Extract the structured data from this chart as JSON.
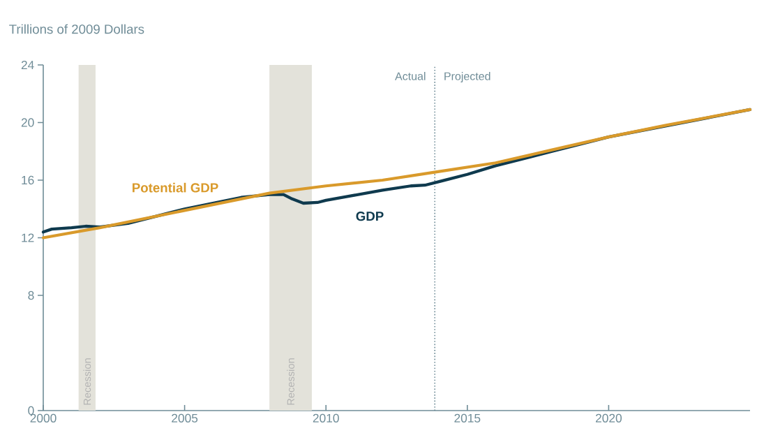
{
  "chart_data": {
    "type": "line",
    "ylabel": "Trillions of 2009 Dollars",
    "xlim": [
      2000,
      2025
    ],
    "ylim": [
      0,
      24
    ],
    "xticks": [
      2000,
      2005,
      2010,
      2015,
      2020
    ],
    "yticks": [
      0,
      8,
      12,
      16,
      20,
      24
    ],
    "legend": false,
    "series": [
      {
        "name": "GDP",
        "color": "#0f3a4e",
        "x": [
          2000,
          2000.3,
          2001,
          2001.5,
          2002,
          2003,
          2004,
          2005,
          2006,
          2007,
          2007.5,
          2008,
          2008.5,
          2008.8,
          2009.2,
          2009.7,
          2010,
          2011,
          2012,
          2013,
          2013.5,
          2014,
          2015,
          2016,
          2018,
          2020,
          2025
        ],
        "values": [
          12.4,
          12.6,
          12.7,
          12.8,
          12.75,
          13.0,
          13.5,
          14.0,
          14.4,
          14.8,
          14.9,
          15.0,
          15.0,
          14.7,
          14.4,
          14.45,
          14.6,
          14.95,
          15.3,
          15.6,
          15.65,
          15.9,
          16.4,
          17.0,
          18.0,
          19.0,
          20.9
        ]
      },
      {
        "name": "Potential GDP",
        "color": "#d99a2b",
        "x": [
          2000,
          2002,
          2004,
          2006,
          2008,
          2010,
          2012,
          2014,
          2016,
          2018,
          2020,
          2022,
          2025
        ],
        "values": [
          12.0,
          12.7,
          13.5,
          14.3,
          15.1,
          15.6,
          16.0,
          16.6,
          17.2,
          18.1,
          19.0,
          19.8,
          20.9
        ]
      }
    ],
    "bands": [
      {
        "axis": "x",
        "from": 2001.25,
        "to": 2001.85,
        "label": "Recession",
        "color": "#e3e2da"
      },
      {
        "axis": "x",
        "from": 2008.0,
        "to": 2009.5,
        "label": "Recession",
        "color": "#e3e2da"
      }
    ],
    "ref_lines": [
      {
        "axis": "x",
        "value": 2013.85,
        "line_style": "dotted",
        "color": "#6f8c97"
      }
    ],
    "annotations": [
      "Actual",
      "Projected"
    ]
  }
}
